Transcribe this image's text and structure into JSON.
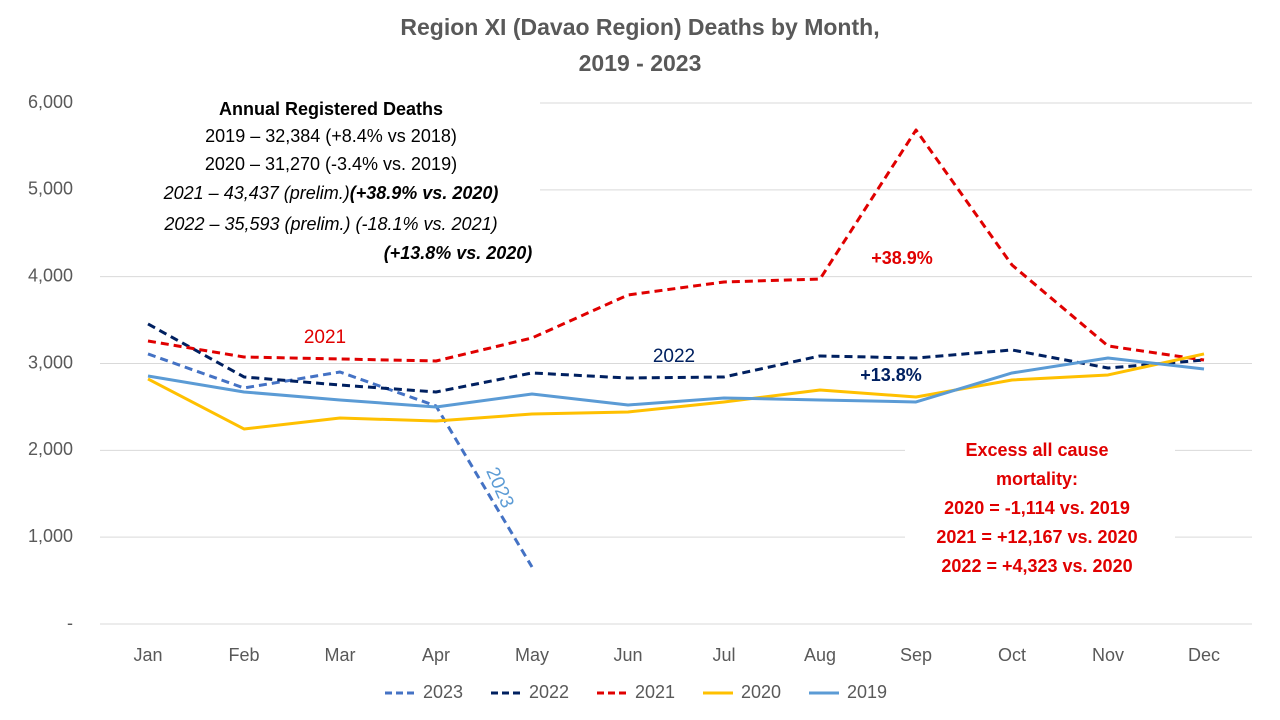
{
  "chart_data": {
    "type": "line",
    "title": "Region XI (Davao Region) Deaths by Month,",
    "subtitle": "2019 - 2023",
    "categories": [
      "Jan",
      "Feb",
      "Mar",
      "Apr",
      "May",
      "Jun",
      "Jul",
      "Aug",
      "Sep",
      "Oct",
      "Nov",
      "Dec"
    ],
    "ylim": [
      0,
      6000
    ],
    "yticks": [
      {
        "value": 0,
        "label": "-"
      },
      {
        "value": 1000,
        "label": "1,000"
      },
      {
        "value": 2000,
        "label": "2,000"
      },
      {
        "value": 3000,
        "label": "3,000"
      },
      {
        "value": 4000,
        "label": "4,000"
      },
      {
        "value": 5000,
        "label": "5,000"
      },
      {
        "value": 6000,
        "label": "6,000"
      }
    ],
    "grid": true,
    "legend": "bottom",
    "series": [
      {
        "name": "2023",
        "color": "#4472c4",
        "dashed": true,
        "values": [
          3110,
          2718,
          2902,
          2511,
          656,
          null,
          null,
          null,
          null,
          null,
          null,
          null
        ]
      },
      {
        "name": "2022",
        "color": "#002060",
        "dashed": true,
        "values": [
          3455,
          2845,
          2752,
          2672,
          2891,
          2833,
          2845,
          3087,
          3063,
          3156,
          2948,
          3040
        ]
      },
      {
        "name": "2021",
        "color": "#e00000",
        "dashed": true,
        "values": [
          3259,
          3075,
          3052,
          3029,
          3294,
          3789,
          3939,
          3973,
          5689,
          4134,
          3202,
          3040
        ]
      },
      {
        "name": "2020",
        "color": "#ffc000",
        "dashed": false,
        "values": [
          2822,
          2246,
          2372,
          2338,
          2418,
          2442,
          2557,
          2695,
          2614,
          2810,
          2868,
          3110
        ]
      },
      {
        "name": "2019",
        "color": "#5b9bd5",
        "dashed": false,
        "values": [
          2856,
          2672,
          2580,
          2499,
          2649,
          2522,
          2603,
          2580,
          2557,
          2891,
          3063,
          2937
        ]
      }
    ],
    "annual_deaths": {
      "title": "Annual Registered Deaths",
      "lines": [
        [
          "2019 – 32,384 (+8.4% vs 2018)"
        ],
        [
          "2020 – 31,270 (-3.4% vs. 2019)"
        ],
        [
          "2021 – 43,437 (prelim.)",
          "(+38.9% vs. 2020)"
        ],
        [
          "2022 – 35,593 (prelim.) (-18.1% vs. 2021)"
        ],
        [
          "(+13.8% vs. 2020)"
        ]
      ]
    },
    "line_labels": {
      "l2021": "2021",
      "l2022": "2022",
      "l2023": "2023",
      "pct2021": "+38.9%",
      "pct2022": "+13.8%"
    },
    "excess": [
      "Excess all cause",
      "mortality:",
      "2020 = -1,114 vs. 2019",
      "2021 = +12,167 vs. 2020",
      "2022 = +4,323 vs. 2020"
    ]
  }
}
